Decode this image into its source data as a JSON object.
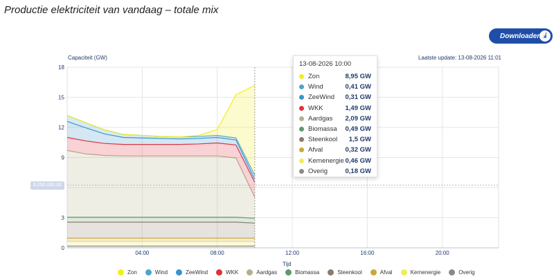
{
  "page": {
    "title": "Productie elektriciteit van vandaag – totale mix",
    "download_label": "Downloaden",
    "download_icon": "download-icon",
    "last_update": "Laatste update: 13-08-2026 11:01"
  },
  "chart_data": {
    "type": "area",
    "stacked": true,
    "ylabel": "Capaciteit (GW)",
    "xlabel": "Tijd",
    "ylim": [
      0,
      18
    ],
    "y_ticks": [
      "0",
      "3",
      "6",
      "9",
      "12",
      "15",
      "18"
    ],
    "x_ticks": [
      "04:00",
      "08:00",
      "12:00",
      "16:00",
      "20:00"
    ],
    "x_range_hours": [
      0,
      23
    ],
    "x_hours": [
      0,
      1,
      2,
      3,
      4,
      5,
      6,
      7,
      8,
      9,
      10
    ],
    "crosshair_label": "6,250,000.00",
    "grid": true,
    "legend_position": "bottom",
    "series": [
      {
        "name": "Overig",
        "color": "#8a8a8a",
        "values": [
          0.18,
          0.18,
          0.18,
          0.18,
          0.18,
          0.18,
          0.18,
          0.18,
          0.18,
          0.18,
          0.18
        ]
      },
      {
        "name": "Kernenergie",
        "color": "#f0ee55",
        "values": [
          0.46,
          0.46,
          0.46,
          0.46,
          0.46,
          0.46,
          0.46,
          0.46,
          0.46,
          0.46,
          0.46
        ]
      },
      {
        "name": "Afval",
        "color": "#c8a93a",
        "values": [
          0.32,
          0.32,
          0.32,
          0.32,
          0.32,
          0.32,
          0.32,
          0.32,
          0.32,
          0.32,
          0.32
        ]
      },
      {
        "name": "Steenkool",
        "color": "#8b7d6b",
        "values": [
          1.6,
          1.6,
          1.6,
          1.6,
          1.6,
          1.6,
          1.6,
          1.6,
          1.6,
          1.6,
          1.5
        ]
      },
      {
        "name": "Biomassa",
        "color": "#5f9a6a",
        "values": [
          0.49,
          0.49,
          0.49,
          0.49,
          0.49,
          0.49,
          0.49,
          0.49,
          0.49,
          0.49,
          0.49
        ]
      },
      {
        "name": "Aardgas",
        "color": "#b5b08a",
        "values": [
          6.65,
          6.3,
          6.15,
          6.1,
          6.1,
          6.1,
          6.1,
          6.1,
          6.1,
          5.9,
          2.09
        ]
      },
      {
        "name": "WKK",
        "color": "#e0303a",
        "values": [
          1.3,
          1.3,
          1.2,
          1.15,
          1.15,
          1.15,
          1.15,
          1.2,
          1.3,
          1.3,
          1.49
        ]
      },
      {
        "name": "ZeeWind",
        "color": "#3a93c9",
        "values": [
          1.6,
          1.3,
          0.95,
          0.7,
          0.65,
          0.6,
          0.55,
          0.55,
          0.55,
          0.5,
          0.31
        ]
      },
      {
        "name": "Wind",
        "color": "#4fa3d0",
        "values": [
          0.6,
          0.5,
          0.4,
          0.3,
          0.25,
          0.2,
          0.2,
          0.2,
          0.2,
          0.2,
          0.41
        ]
      },
      {
        "name": "Zon",
        "color": "#f2ee20",
        "values": [
          0,
          0,
          0,
          0,
          0,
          0,
          0,
          0.1,
          0.6,
          4.3,
          8.95
        ]
      }
    ]
  },
  "tooltip": {
    "title": "13-08-2026 10:00",
    "rows": [
      {
        "name": "Zon",
        "value": "8,95 GW",
        "color": "#f2ee20"
      },
      {
        "name": "Wind",
        "value": "0,41 GW",
        "color": "#4fa3d0"
      },
      {
        "name": "ZeeWind",
        "value": "0,31 GW",
        "color": "#3a93c9"
      },
      {
        "name": "WKK",
        "value": "1,49 GW",
        "color": "#e0303a"
      },
      {
        "name": "Aardgas",
        "value": "2,09 GW",
        "color": "#b5b08a"
      },
      {
        "name": "Biomassa",
        "value": "0,49 GW",
        "color": "#5f9a6a"
      },
      {
        "name": "Steenkool",
        "value": "1,5 GW",
        "color": "#8b7d6b"
      },
      {
        "name": "Afval",
        "value": "0,32 GW",
        "color": "#c8a93a"
      },
      {
        "name": "Kernenergie",
        "value": "0,46 GW",
        "color": "#f0ee55"
      },
      {
        "name": "Overig",
        "value": "0,18 GW",
        "color": "#8a8a8a"
      }
    ]
  },
  "legend": [
    {
      "name": "Zon",
      "color": "#f2ee20"
    },
    {
      "name": "Wind",
      "color": "#4fa3d0"
    },
    {
      "name": "ZeeWind",
      "color": "#3a93c9"
    },
    {
      "name": "WKK",
      "color": "#e0303a"
    },
    {
      "name": "Aardgas",
      "color": "#b5b08a"
    },
    {
      "name": "Biomassa",
      "color": "#5f9a6a"
    },
    {
      "name": "Steenkool",
      "color": "#8b7d6b"
    },
    {
      "name": "Afval",
      "color": "#c8a93a"
    },
    {
      "name": "Kernenergie",
      "color": "#f0ee55"
    },
    {
      "name": "Overig",
      "color": "#8a8a8a"
    }
  ]
}
